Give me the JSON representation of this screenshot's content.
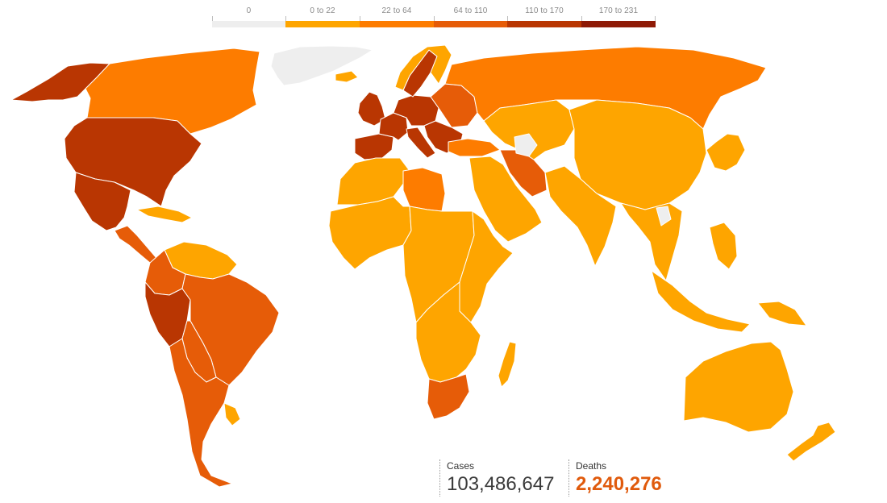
{
  "legend": {
    "items": [
      {
        "label": "0",
        "color": "#eeeeee"
      },
      {
        "label": "0 to 22",
        "color": "#fea500"
      },
      {
        "label": "22 to 64",
        "color": "#fd7c00"
      },
      {
        "label": "64 to 110",
        "color": "#e65c08"
      },
      {
        "label": "110 to 170",
        "color": "#b93602"
      },
      {
        "label": "170 to 231",
        "color": "#8e1a06"
      }
    ]
  },
  "stats": {
    "cases_label": "Cases",
    "cases_value": "103,486,647",
    "deaths_label": "Deaths",
    "deaths_value": "2,240,276"
  },
  "regions": [
    {
      "name": "greenland",
      "bin": 0
    },
    {
      "name": "alaska",
      "bin": 4
    },
    {
      "name": "canada",
      "bin": 2
    },
    {
      "name": "usa",
      "bin": 4
    },
    {
      "name": "mexico",
      "bin": 4
    },
    {
      "name": "central-america",
      "bin": 3
    },
    {
      "name": "caribbean",
      "bin": 1
    },
    {
      "name": "venezuela-guianas",
      "bin": 1
    },
    {
      "name": "colombia-ecuador",
      "bin": 3
    },
    {
      "name": "peru",
      "bin": 4
    },
    {
      "name": "brazil",
      "bin": 3
    },
    {
      "name": "bolivia-paraguay",
      "bin": 3
    },
    {
      "name": "chile-argentina",
      "bin": 3
    },
    {
      "name": "uruguay",
      "bin": 1
    },
    {
      "name": "iceland",
      "bin": 1
    },
    {
      "name": "uk-ireland",
      "bin": 4
    },
    {
      "name": "iberia",
      "bin": 4
    },
    {
      "name": "france",
      "bin": 4
    },
    {
      "name": "central-europe",
      "bin": 4
    },
    {
      "name": "italy",
      "bin": 4
    },
    {
      "name": "sweden",
      "bin": 4
    },
    {
      "name": "norway-finland",
      "bin": 1
    },
    {
      "name": "eastern-europe",
      "bin": 3
    },
    {
      "name": "balkans",
      "bin": 4
    },
    {
      "name": "russia",
      "bin": 2
    },
    {
      "name": "turkey",
      "bin": 2
    },
    {
      "name": "middle-east",
      "bin": 1
    },
    {
      "name": "iran",
      "bin": 3
    },
    {
      "name": "central-asia",
      "bin": 1
    },
    {
      "name": "caspian-gap",
      "bin": 0
    },
    {
      "name": "china-mongolia",
      "bin": 1
    },
    {
      "name": "japan-korea",
      "bin": 1
    },
    {
      "name": "india",
      "bin": 1
    },
    {
      "name": "southeast-asia",
      "bin": 1
    },
    {
      "name": "indochina-gap",
      "bin": 0
    },
    {
      "name": "indonesia",
      "bin": 1
    },
    {
      "name": "philippines",
      "bin": 1
    },
    {
      "name": "new-guinea",
      "bin": 1
    },
    {
      "name": "australia",
      "bin": 1
    },
    {
      "name": "new-zealand",
      "bin": 1
    },
    {
      "name": "north-africa",
      "bin": 1
    },
    {
      "name": "libya",
      "bin": 2
    },
    {
      "name": "west-africa",
      "bin": 1
    },
    {
      "name": "central-africa",
      "bin": 1
    },
    {
      "name": "east-africa",
      "bin": 1
    },
    {
      "name": "southern-africa",
      "bin": 1
    },
    {
      "name": "south-africa",
      "bin": 3
    },
    {
      "name": "madagascar",
      "bin": 1
    }
  ]
}
